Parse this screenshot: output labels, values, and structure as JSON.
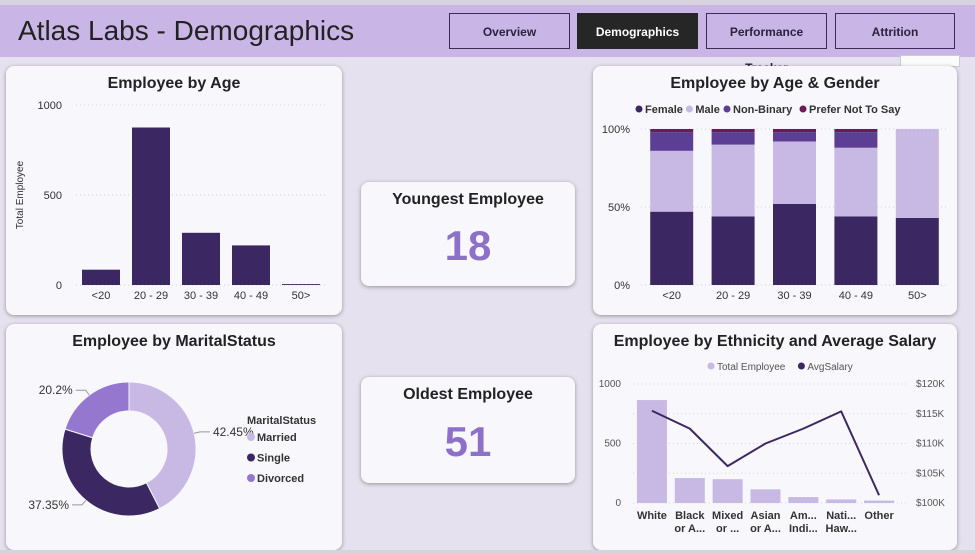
{
  "header": {
    "title": "Atlas Labs - Demographics",
    "nav": [
      {
        "label": "Overview",
        "active": false
      },
      {
        "label": "Demographics",
        "active": true
      },
      {
        "label": "Performance Tracker",
        "active": false
      },
      {
        "label": "Attrition",
        "active": false
      }
    ]
  },
  "kpis": {
    "youngest": {
      "label": "Youngest Employee",
      "value": "18"
    },
    "oldest": {
      "label": "Oldest Employee",
      "value": "51"
    }
  },
  "colors": {
    "dark": "#3b2862",
    "light": "#c7b8e4",
    "mid": "#5c3f94",
    "maroon": "#6d1a58",
    "divorced": "#9577cf",
    "accent_text": "#8d71c9"
  },
  "chart_data": [
    {
      "id": "age",
      "type": "bar",
      "title": "Employee by Age",
      "ylabel": "Total Employee",
      "xlabel": "",
      "categories": [
        "<20",
        "20 - 29",
        "30 - 39",
        "40 - 49",
        "50>"
      ],
      "values": [
        85,
        875,
        290,
        220,
        5
      ],
      "ylim": [
        0,
        1000
      ],
      "yticks": [
        "0",
        "500",
        "1000"
      ]
    },
    {
      "id": "age_gender",
      "type": "bar",
      "stacked": "100%",
      "title": "Employee by Age & Gender",
      "categories": [
        "<20",
        "20 - 29",
        "30 - 39",
        "40 - 49",
        "50>"
      ],
      "series": [
        {
          "name": "Female",
          "values": [
            47,
            44,
            52,
            44,
            43
          ]
        },
        {
          "name": "Male",
          "values": [
            39,
            46,
            40,
            44,
            57
          ]
        },
        {
          "name": "Non-Binary",
          "values": [
            12,
            8,
            6,
            10,
            0
          ]
        },
        {
          "name": "Prefer Not To Say",
          "values": [
            2,
            2,
            2,
            2,
            0
          ]
        }
      ],
      "yticks": [
        "0%",
        "50%",
        "100%"
      ],
      "legend": "top"
    },
    {
      "id": "marital",
      "type": "pie",
      "donut": true,
      "title": "Employee by MaritalStatus",
      "legend_title": "MaritalStatus",
      "slices": [
        {
          "name": "Married",
          "value": 42.45,
          "label": "42.45%"
        },
        {
          "name": "Single",
          "value": 37.35,
          "label": "37.35%"
        },
        {
          "name": "Divorced",
          "value": 20.2,
          "label": "20.2%"
        }
      ]
    },
    {
      "id": "ethnicity",
      "type": "bar",
      "combo": "bar+line",
      "title": "Employee by Ethnicity and Average Salary",
      "categories": [
        [
          "White"
        ],
        [
          "Black",
          "or A..."
        ],
        [
          "Mixed",
          "or ..."
        ],
        [
          "Asian",
          "or A..."
        ],
        [
          "Am...",
          "Indi..."
        ],
        [
          "Nati...",
          "Haw..."
        ],
        [
          "Other"
        ]
      ],
      "series": [
        {
          "name": "Total Employee",
          "values": [
            865,
            210,
            200,
            115,
            50,
            30,
            20
          ],
          "axis": "left"
        },
        {
          "name": "AvgSalary",
          "values": [
            115500,
            112500,
            106200,
            110000,
            112500,
            115400,
            101300
          ],
          "axis": "right"
        }
      ],
      "ylim_left": [
        0,
        1000
      ],
      "yticks_left": [
        "0",
        "500",
        "1000"
      ],
      "ylim_right": [
        100000,
        120000
      ],
      "yticks_right": [
        "$100K",
        "$105K",
        "$110K",
        "$115K",
        "$120K"
      ],
      "legend": "top"
    }
  ]
}
